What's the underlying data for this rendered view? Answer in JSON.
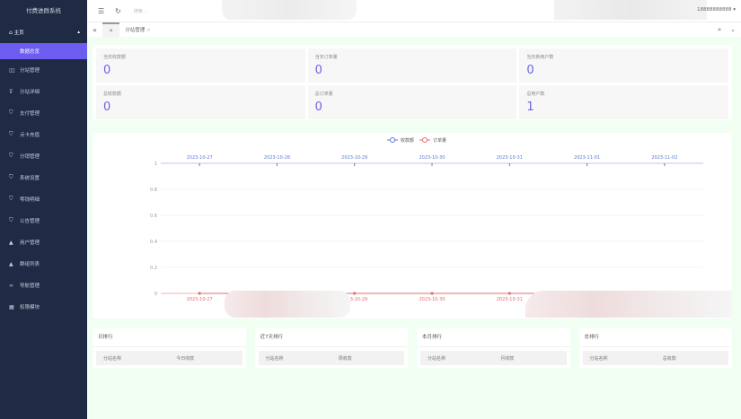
{
  "app": {
    "title": "付费进群系统"
  },
  "sidebar": {
    "home": "主页",
    "items": [
      {
        "label": "数据总览",
        "icon": "none",
        "active": true
      },
      {
        "label": "分站管理",
        "icon": "grid-icon"
      },
      {
        "label": "分站详细",
        "icon": "filter-icon"
      },
      {
        "label": "支付管理",
        "icon": "shield-icon"
      },
      {
        "label": "点卡充值",
        "icon": "shield-icon"
      },
      {
        "label": "分销管理",
        "icon": "shield-icon"
      },
      {
        "label": "系统设置",
        "icon": "shield-icon"
      },
      {
        "label": "零钱明细",
        "icon": "shield-icon"
      },
      {
        "label": "公告管理",
        "icon": "shield-icon"
      },
      {
        "label": "用户管理",
        "icon": "user-icon"
      },
      {
        "label": "群组列表",
        "icon": "users-icon"
      },
      {
        "label": "导航管理",
        "icon": "link-icon"
      },
      {
        "label": "权限模块",
        "icon": "table-icon"
      }
    ]
  },
  "header": {
    "search": "搜索...",
    "user": "18888888888"
  },
  "tabs": {
    "current": "分站管理"
  },
  "stats": [
    {
      "label": "当天收款额",
      "value": "0"
    },
    {
      "label": "当天订单量",
      "value": "0"
    },
    {
      "label": "当天新用户数",
      "value": "0"
    },
    {
      "label": "总收款额",
      "value": "0"
    },
    {
      "label": "总订单量",
      "value": "0"
    },
    {
      "label": "总用户数",
      "value": "1"
    }
  ],
  "chart_data": {
    "type": "line",
    "x": [
      "2023-10-27",
      "2023-10-28",
      "2023-10-29",
      "2023-10-30",
      "2023-10-31",
      "2023-11-01",
      "2023-11-02"
    ],
    "series": [
      {
        "name": "收款额",
        "color": "#5b7bd5",
        "values": [
          0,
          0,
          0,
          0,
          0,
          0,
          0
        ]
      },
      {
        "name": "订单量",
        "color": "#e86a6a",
        "values": [
          0,
          0,
          0,
          0,
          0,
          0,
          0
        ]
      }
    ],
    "yticks": [
      "0",
      "0.2",
      "0.4",
      "0.6",
      "0.8",
      "1"
    ],
    "ylim": [
      0,
      1
    ],
    "legend": "top"
  },
  "ranks": [
    {
      "title": "日排行",
      "cols": [
        "分站名称",
        "今日收款"
      ]
    },
    {
      "title": "近7天排行",
      "cols": [
        "分站名称",
        "周收款"
      ]
    },
    {
      "title": "本月排行",
      "cols": [
        "分站名称",
        "月收款"
      ]
    },
    {
      "title": "总排行",
      "cols": [
        "分站名称",
        "总收款"
      ]
    }
  ]
}
